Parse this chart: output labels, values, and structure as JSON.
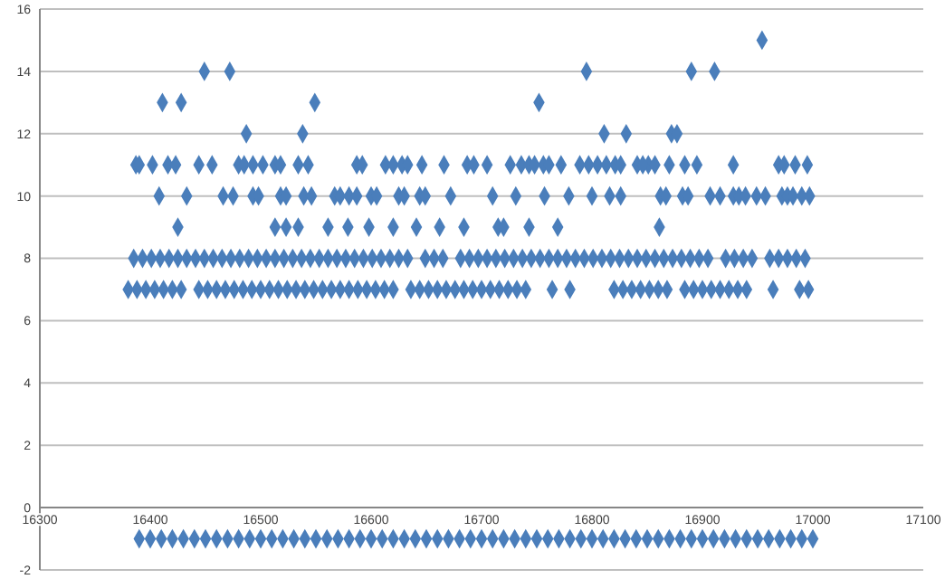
{
  "chart_data": {
    "type": "scatter",
    "xlim": [
      16300,
      17100
    ],
    "xticks": [
      16300,
      16400,
      16500,
      16600,
      16700,
      16800,
      16900,
      17000,
      17100
    ],
    "ylim": [
      -2,
      16
    ],
    "yticks": [
      -2,
      0,
      2,
      4,
      6,
      8,
      10,
      12,
      14,
      16
    ],
    "grid": "y",
    "marker": "diamond",
    "series": [
      {
        "color": "#4a7ebb",
        "x": [
          16954
        ],
        "values": [
          15
        ]
      },
      {
        "color": "#4a7ebb",
        "x": [
          16449,
          16472,
          16795,
          16890,
          16911
        ],
        "values": [
          14,
          14,
          14,
          14,
          14
        ]
      },
      {
        "color": "#4a7ebb",
        "x": [
          16411,
          16428,
          16549,
          16752
        ],
        "values": [
          13,
          13,
          13,
          13
        ]
      },
      {
        "color": "#4a7ebb",
        "x": [
          16487,
          16538,
          16811,
          16831,
          16872,
          16877
        ],
        "values": [
          12,
          12,
          12,
          12,
          12,
          12
        ]
      },
      {
        "color": "#4a7ebb",
        "x": [
          16387,
          16390,
          16402,
          16416,
          16423,
          16444,
          16456,
          16480,
          16485,
          16493,
          16502,
          16513,
          16518,
          16534,
          16543,
          16587,
          16592,
          16613,
          16620,
          16628,
          16633,
          16646,
          16666,
          16687,
          16693,
          16705,
          16726,
          16736,
          16743,
          16748,
          16756,
          16761,
          16772,
          16789,
          16797,
          16805,
          16813,
          16821,
          16826,
          16851,
          16841,
          16846,
          16857,
          16870,
          16884,
          16895,
          16928,
          16969,
          16974,
          16984,
          16995
        ],
        "values": [
          11,
          11,
          11,
          11,
          11,
          11,
          11,
          11,
          11,
          11,
          11,
          11,
          11,
          11,
          11,
          11,
          11,
          11,
          11,
          11,
          11,
          11,
          11,
          11,
          11,
          11,
          11,
          11,
          11,
          11,
          11,
          11,
          11,
          11,
          11,
          11,
          11,
          11,
          11,
          11,
          11,
          11,
          11,
          11,
          11,
          11,
          11,
          11,
          11,
          11,
          11
        ]
      },
      {
        "color": "#4a7ebb",
        "x": [
          16408,
          16433,
          16466,
          16475,
          16493,
          16498,
          16518,
          16523,
          16539,
          16546,
          16567,
          16572,
          16580,
          16587,
          16600,
          16605,
          16625,
          16630,
          16644,
          16649,
          16672,
          16710,
          16731,
          16757,
          16779,
          16800,
          16816,
          16826,
          16862,
          16867,
          16882,
          16887,
          16907,
          16916,
          16928,
          16933,
          16939,
          16949,
          16957,
          16972,
          16977,
          16982,
          16990,
          16997
        ],
        "values": [
          10,
          10,
          10,
          10,
          10,
          10,
          10,
          10,
          10,
          10,
          10,
          10,
          10,
          10,
          10,
          10,
          10,
          10,
          10,
          10,
          10,
          10,
          10,
          10,
          10,
          10,
          10,
          10,
          10,
          10,
          10,
          10,
          10,
          10,
          10,
          10,
          10,
          10,
          10,
          10,
          10,
          10,
          10,
          10
        ]
      },
      {
        "color": "#4a7ebb",
        "x": [
          16425,
          16513,
          16523,
          16534,
          16561,
          16579,
          16598,
          16620,
          16641,
          16662,
          16684,
          16715,
          16720,
          16743,
          16769,
          16861
        ],
        "values": [
          9,
          9,
          9,
          9,
          9,
          9,
          9,
          9,
          9,
          9,
          9,
          9,
          9,
          9,
          9,
          9
        ]
      },
      {
        "color": "#4a7ebb",
        "x": [
          16385,
          16393,
          16401,
          16409,
          16417,
          16425,
          16433,
          16441,
          16449,
          16457,
          16465,
          16473,
          16481,
          16489,
          16497,
          16505,
          16513,
          16521,
          16529,
          16537,
          16545,
          16553,
          16561,
          16569,
          16577,
          16585,
          16593,
          16601,
          16609,
          16617,
          16625,
          16633,
          16649,
          16657,
          16665,
          16681,
          16689,
          16697,
          16705,
          16713,
          16721,
          16729,
          16737,
          16745,
          16753,
          16761,
          16769,
          16777,
          16785,
          16793,
          16801,
          16809,
          16817,
          16825,
          16833,
          16841,
          16849,
          16857,
          16865,
          16873,
          16881,
          16889,
          16897,
          16905,
          16921,
          16929,
          16937,
          16945,
          16961,
          16969,
          16977,
          16985,
          16993
        ],
        "values": [
          8,
          8,
          8,
          8,
          8,
          8,
          8,
          8,
          8,
          8,
          8,
          8,
          8,
          8,
          8,
          8,
          8,
          8,
          8,
          8,
          8,
          8,
          8,
          8,
          8,
          8,
          8,
          8,
          8,
          8,
          8,
          8,
          8,
          8,
          8,
          8,
          8,
          8,
          8,
          8,
          8,
          8,
          8,
          8,
          8,
          8,
          8,
          8,
          8,
          8,
          8,
          8,
          8,
          8,
          8,
          8,
          8,
          8,
          8,
          8,
          8,
          8,
          8,
          8,
          8,
          8,
          8,
          8,
          8,
          8,
          8,
          8,
          8
        ]
      },
      {
        "color": "#4a7ebb",
        "x": [
          16380,
          16388,
          16396,
          16404,
          16412,
          16420,
          16428,
          16444,
          16452,
          16460,
          16468,
          16476,
          16484,
          16492,
          16500,
          16508,
          16516,
          16524,
          16532,
          16540,
          16548,
          16556,
          16564,
          16572,
          16580,
          16588,
          16596,
          16604,
          16612,
          16620,
          16636,
          16644,
          16652,
          16660,
          16668,
          16676,
          16684,
          16692,
          16700,
          16708,
          16716,
          16724,
          16732,
          16740,
          16764,
          16780,
          16820,
          16828,
          16836,
          16844,
          16852,
          16860,
          16868,
          16884,
          16892,
          16900,
          16908,
          16916,
          16924,
          16932,
          16940,
          16964,
          16988,
          16996
        ],
        "values": [
          7,
          7,
          7,
          7,
          7,
          7,
          7,
          7,
          7,
          7,
          7,
          7,
          7,
          7,
          7,
          7,
          7,
          7,
          7,
          7,
          7,
          7,
          7,
          7,
          7,
          7,
          7,
          7,
          7,
          7,
          7,
          7,
          7,
          7,
          7,
          7,
          7,
          7,
          7,
          7,
          7,
          7,
          7,
          7,
          7,
          7,
          7,
          7,
          7,
          7,
          7,
          7,
          7,
          7,
          7,
          7,
          7,
          7,
          7,
          7,
          7,
          7,
          7,
          7
        ]
      },
      {
        "color": "#4a7ebb",
        "x": [
          16390,
          16400,
          16410,
          16420,
          16430,
          16440,
          16450,
          16460,
          16470,
          16480,
          16490,
          16500,
          16510,
          16520,
          16530,
          16540,
          16550,
          16560,
          16570,
          16580,
          16590,
          16600,
          16610,
          16620,
          16630,
          16640,
          16650,
          16660,
          16670,
          16680,
          16690,
          16700,
          16710,
          16720,
          16730,
          16740,
          16750,
          16760,
          16770,
          16780,
          16790,
          16800,
          16810,
          16820,
          16830,
          16840,
          16850,
          16860,
          16870,
          16880,
          16890,
          16900,
          16910,
          16920,
          16930,
          16940,
          16950,
          16960,
          16970,
          16980,
          16990,
          17000
        ],
        "values": [
          -1,
          -1,
          -1,
          -1,
          -1,
          -1,
          -1,
          -1,
          -1,
          -1,
          -1,
          -1,
          -1,
          -1,
          -1,
          -1,
          -1,
          -1,
          -1,
          -1,
          -1,
          -1,
          -1,
          -1,
          -1,
          -1,
          -1,
          -1,
          -1,
          -1,
          -1,
          -1,
          -1,
          -1,
          -1,
          -1,
          -1,
          -1,
          -1,
          -1,
          -1,
          -1,
          -1,
          -1,
          -1,
          -1,
          -1,
          -1,
          -1,
          -1,
          -1,
          -1,
          -1,
          -1,
          -1,
          -1,
          -1,
          -1,
          -1,
          -1,
          -1,
          -1
        ]
      }
    ]
  }
}
